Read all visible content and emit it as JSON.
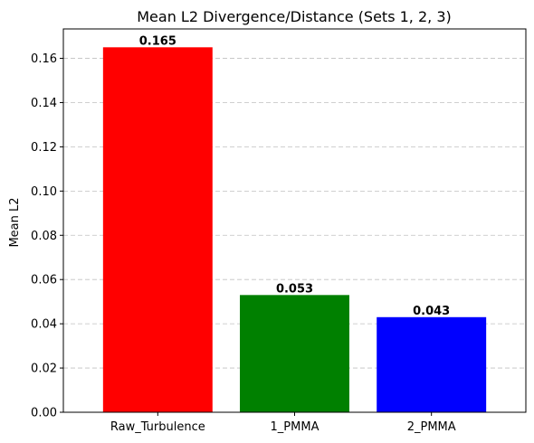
{
  "chart_data": {
    "type": "bar",
    "title": "Mean L2 Divergence/Distance (Sets 1, 2, 3)",
    "ylabel": "Mean L2",
    "xlabel": "",
    "categories": [
      "Raw_Turbulence",
      "1_PMMA",
      "2_PMMA"
    ],
    "values": [
      0.165,
      0.053,
      0.043
    ],
    "value_labels": [
      "0.165",
      "0.053",
      "0.043"
    ],
    "colors": [
      "#ff0000",
      "#008000",
      "#0000ff"
    ],
    "ylim": [
      0,
      0.1733
    ],
    "yticks": [
      0.0,
      0.02,
      0.04,
      0.06,
      0.08,
      0.1,
      0.12,
      0.14,
      0.16
    ],
    "ytick_labels": [
      "0.00",
      "0.02",
      "0.04",
      "0.06",
      "0.08",
      "0.10",
      "0.12",
      "0.14",
      "0.16"
    ],
    "grid": "y-dashed",
    "legend": "none"
  }
}
